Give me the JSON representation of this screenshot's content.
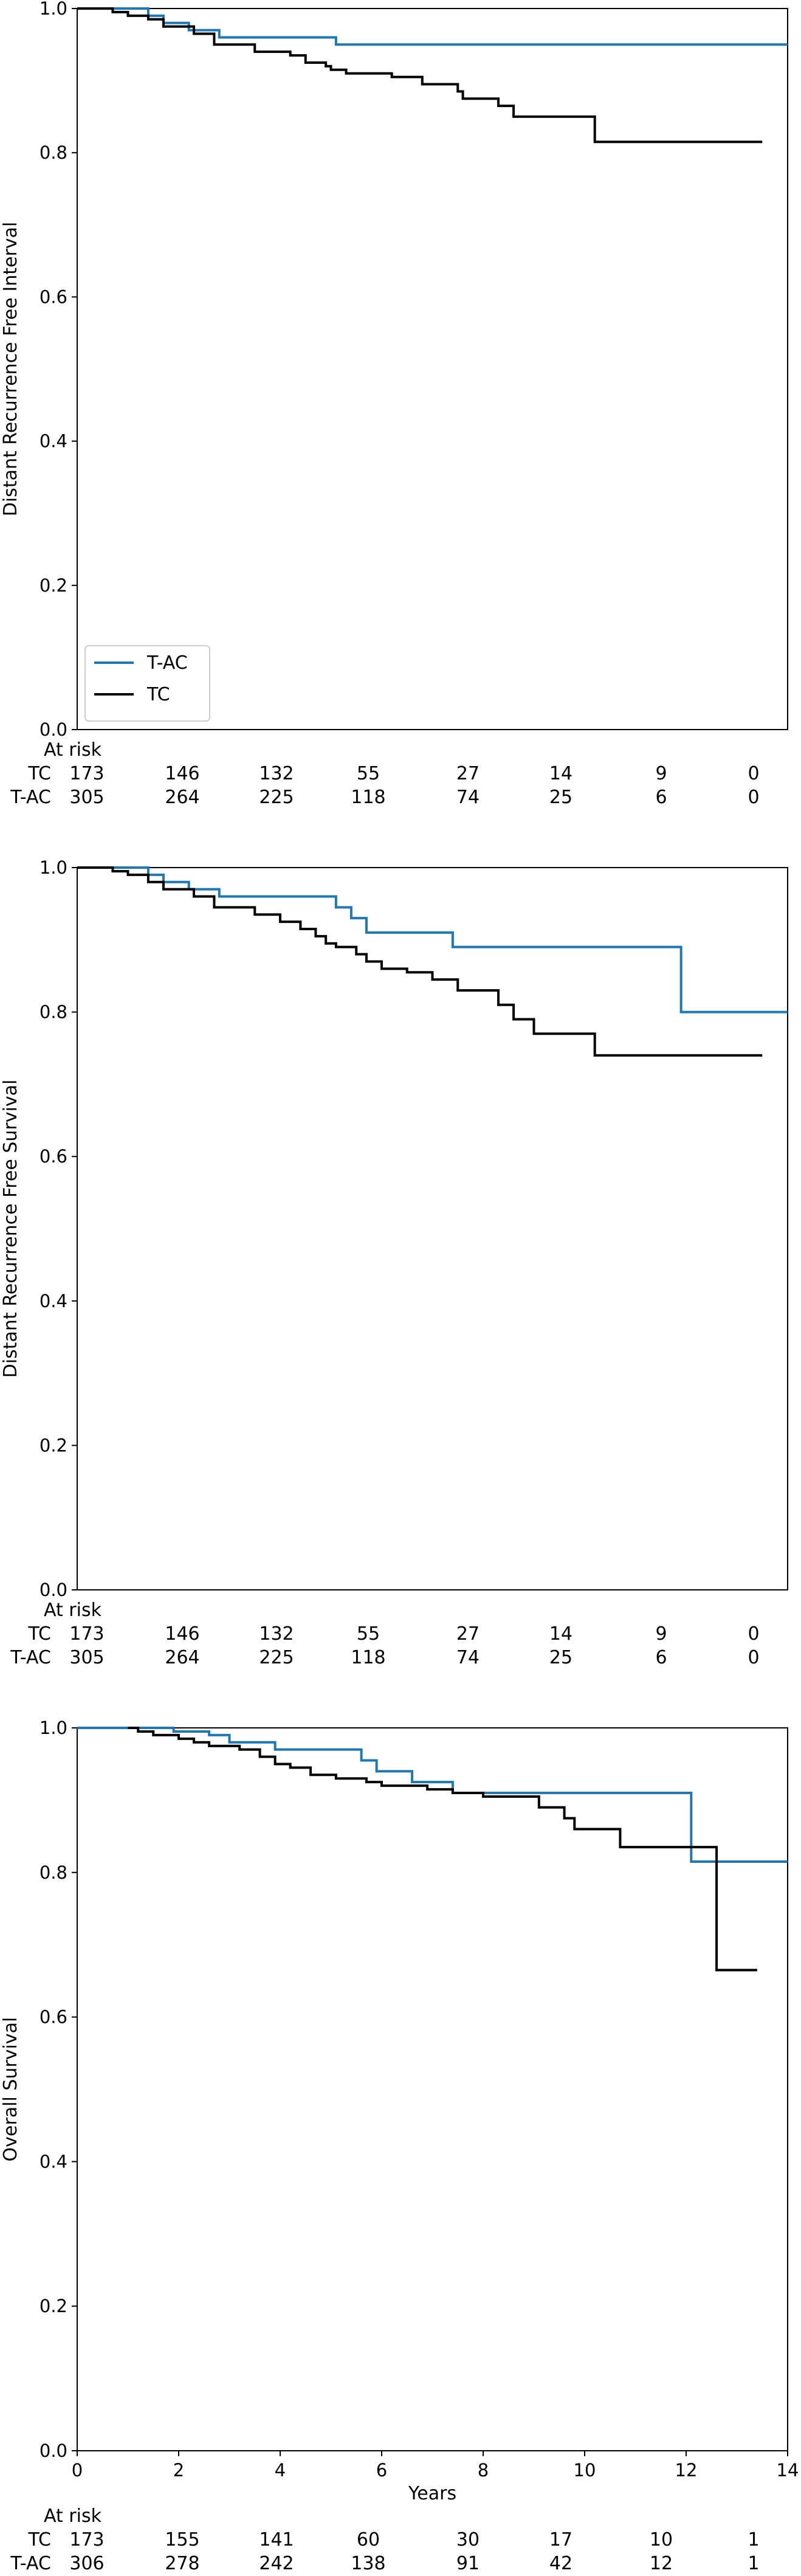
{
  "chart_data": [
    {
      "type": "line",
      "step": true,
      "title": "",
      "xlabel": "",
      "ylabel": "Distant Recurrence Free Interval",
      "xlim": [
        0,
        14
      ],
      "ylim": [
        0,
        1.0
      ],
      "yticks": [
        "0.0",
        "0.2",
        "0.4",
        "0.6",
        "0.8",
        "1.0"
      ],
      "xticks": [],
      "grid": false,
      "legend": {
        "placement": "lower-left",
        "entries": [
          "T-AC",
          "TC"
        ]
      },
      "series": [
        {
          "name": "T-AC",
          "color": "#1f77b4",
          "x": [
            0,
            1.4,
            1.7,
            2.2,
            2.8,
            5.1,
            14
          ],
          "y": [
            1.0,
            0.99,
            0.98,
            0.97,
            0.96,
            0.95,
            0.95
          ]
        },
        {
          "name": "TC",
          "color": "#000000",
          "x": [
            0,
            0.7,
            1.0,
            1.4,
            1.7,
            2.3,
            2.7,
            3.5,
            4.2,
            4.5,
            4.9,
            5.0,
            5.3,
            5.5,
            6.2,
            6.8,
            7.5,
            7.6,
            8.3,
            8.6,
            10.2,
            13.5
          ],
          "y": [
            1.0,
            0.995,
            0.99,
            0.985,
            0.975,
            0.965,
            0.95,
            0.94,
            0.935,
            0.925,
            0.92,
            0.915,
            0.91,
            0.91,
            0.905,
            0.895,
            0.885,
            0.875,
            0.865,
            0.85,
            0.815,
            0.815
          ]
        }
      ],
      "at_risk": {
        "title": "At risk",
        "rows": [
          {
            "label": "TC",
            "values": [
              "173",
              "146",
              "132",
              "55",
              "27",
              "14",
              "9",
              "0"
            ]
          },
          {
            "label": "T-AC",
            "values": [
              "305",
              "264",
              "225",
              "118",
              "74",
              "25",
              "6",
              "0"
            ]
          }
        ]
      }
    },
    {
      "type": "line",
      "step": true,
      "title": "",
      "xlabel": "",
      "ylabel": "Distant Recurrence Free Survival",
      "xlim": [
        0,
        14
      ],
      "ylim": [
        0,
        1.0
      ],
      "yticks": [
        "0.0",
        "0.2",
        "0.4",
        "0.6",
        "0.8",
        "1.0"
      ],
      "xticks": [],
      "grid": false,
      "legend": null,
      "series": [
        {
          "name": "T-AC",
          "color": "#1f77b4",
          "x": [
            0,
            1.4,
            1.7,
            2.2,
            2.8,
            5.1,
            5.4,
            5.7,
            7.4,
            11.9,
            14
          ],
          "y": [
            1.0,
            0.99,
            0.98,
            0.97,
            0.96,
            0.945,
            0.93,
            0.91,
            0.89,
            0.8,
            0.8
          ]
        },
        {
          "name": "TC",
          "color": "#000000",
          "x": [
            0,
            0.7,
            1.0,
            1.4,
            1.7,
            2.3,
            2.7,
            3.5,
            4.0,
            4.4,
            4.7,
            4.9,
            5.1,
            5.5,
            5.7,
            6.0,
            6.5,
            7.0,
            7.5,
            8.3,
            8.6,
            9.0,
            10.2,
            13.5
          ],
          "y": [
            1.0,
            0.995,
            0.99,
            0.98,
            0.97,
            0.96,
            0.945,
            0.935,
            0.925,
            0.915,
            0.905,
            0.895,
            0.89,
            0.88,
            0.87,
            0.86,
            0.855,
            0.845,
            0.83,
            0.81,
            0.79,
            0.77,
            0.74,
            0.74
          ]
        }
      ],
      "at_risk": {
        "title": "At risk",
        "rows": [
          {
            "label": "TC",
            "values": [
              "173",
              "146",
              "132",
              "55",
              "27",
              "14",
              "9",
              "0"
            ]
          },
          {
            "label": "T-AC",
            "values": [
              "305",
              "264",
              "225",
              "118",
              "74",
              "25",
              "6",
              "0"
            ]
          }
        ]
      }
    },
    {
      "type": "line",
      "step": true,
      "title": "",
      "xlabel": "Years",
      "ylabel": "Overall Survival",
      "xlim": [
        0,
        14
      ],
      "ylim": [
        0,
        1.0
      ],
      "yticks": [
        "0.0",
        "0.2",
        "0.4",
        "0.6",
        "0.8",
        "1.0"
      ],
      "xticks": [
        "0",
        "2",
        "4",
        "6",
        "8",
        "10",
        "12",
        "14"
      ],
      "grid": false,
      "legend": null,
      "series": [
        {
          "name": "T-AC",
          "color": "#1f77b4",
          "x": [
            0,
            1.9,
            2.6,
            3.0,
            3.9,
            5.6,
            5.9,
            6.6,
            7.4,
            12.1,
            14
          ],
          "y": [
            1.0,
            0.995,
            0.99,
            0.98,
            0.97,
            0.955,
            0.94,
            0.925,
            0.91,
            0.815,
            0.815
          ]
        },
        {
          "name": "TC",
          "color": "#000000",
          "x": [
            1.0,
            1.2,
            1.5,
            2.0,
            2.3,
            2.6,
            3.2,
            3.6,
            3.9,
            4.2,
            4.6,
            5.1,
            5.7,
            6.0,
            6.9,
            7.4,
            8.0,
            9.1,
            9.6,
            9.8,
            10.7,
            12.6,
            13.4
          ],
          "y": [
            1.0,
            0.995,
            0.99,
            0.985,
            0.98,
            0.975,
            0.97,
            0.96,
            0.95,
            0.945,
            0.935,
            0.93,
            0.925,
            0.92,
            0.915,
            0.91,
            0.905,
            0.89,
            0.875,
            0.86,
            0.835,
            0.665,
            0.665
          ]
        }
      ],
      "at_risk": {
        "title": "At risk",
        "rows": [
          {
            "label": "TC",
            "values": [
              "173",
              "155",
              "141",
              "60",
              "30",
              "17",
              "10",
              "1"
            ]
          },
          {
            "label": "T-AC",
            "values": [
              "306",
              "278",
              "242",
              "138",
              "91",
              "42",
              "12",
              "1"
            ]
          }
        ]
      }
    }
  ]
}
